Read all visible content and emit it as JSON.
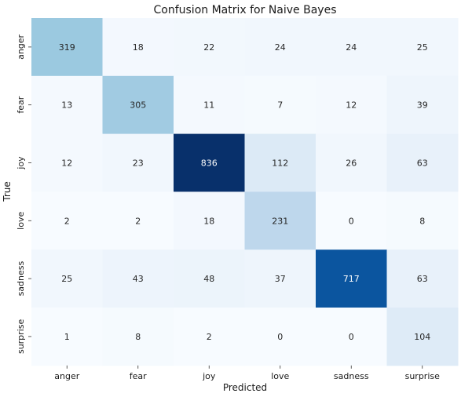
{
  "chart_data": {
    "type": "heatmap",
    "title": "Confusion Matrix for Naive Bayes",
    "xlabel": "Predicted",
    "ylabel": "True",
    "x_categories": [
      "anger",
      "fear",
      "joy",
      "love",
      "sadness",
      "surprise"
    ],
    "y_categories": [
      "anger",
      "fear",
      "joy",
      "love",
      "sadness",
      "surprise"
    ],
    "values": [
      [
        319,
        18,
        22,
        24,
        24,
        25
      ],
      [
        13,
        305,
        11,
        7,
        12,
        39
      ],
      [
        12,
        23,
        836,
        112,
        26,
        63
      ],
      [
        2,
        2,
        18,
        231,
        0,
        8
      ],
      [
        25,
        43,
        48,
        37,
        717,
        63
      ],
      [
        1,
        8,
        2,
        0,
        0,
        104
      ]
    ],
    "colormap": "Blues",
    "vmin": 0,
    "vmax": 836,
    "colorbar": false,
    "annotated": true
  }
}
